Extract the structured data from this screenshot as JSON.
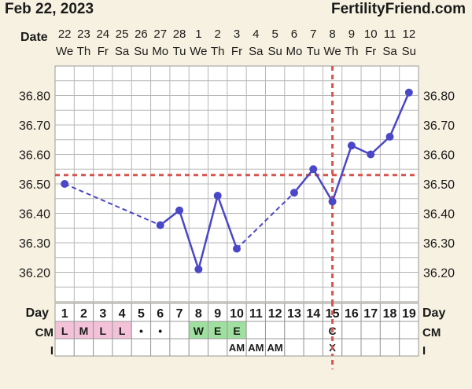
{
  "header": {
    "date_text": "Feb 22, 2023",
    "brand": "FertilityFriend.com"
  },
  "labels": {
    "date_row": "Date",
    "day_row": "Day",
    "cm_row": "CM",
    "i_row": "I"
  },
  "colors": {
    "background": "#f6f1e0",
    "plot_background": "#ffffff",
    "grid": "#b7b7b7",
    "line": "#4a47c8",
    "reference_line": "#d9534f",
    "cm_low_fill": "#f3c1d8",
    "cm_egg_white_fill": "#9fe0a0"
  },
  "chart_data": {
    "type": "line",
    "x": [
      1,
      2,
      3,
      4,
      5,
      6,
      7,
      8,
      9,
      10,
      11,
      12,
      13,
      14,
      15,
      16,
      17,
      18,
      19
    ],
    "dates": [
      "22",
      "23",
      "24",
      "25",
      "26",
      "27",
      "28",
      "1",
      "2",
      "3",
      "4",
      "5",
      "6",
      "7",
      "8",
      "9",
      "10",
      "11",
      "12"
    ],
    "weekdays": [
      "We",
      "Th",
      "Fr",
      "Sa",
      "Su",
      "Mo",
      "Tu",
      "We",
      "Th",
      "Fr",
      "Sa",
      "Su",
      "Mo",
      "Tu",
      "We",
      "Th",
      "Fr",
      "Sa",
      "Su"
    ],
    "series": [
      {
        "values": [
          36.5,
          null,
          null,
          null,
          null,
          36.36,
          36.41,
          36.21,
          36.46,
          36.28,
          null,
          null,
          36.47,
          36.55,
          36.44,
          36.63,
          36.6,
          36.66,
          36.81
        ]
      }
    ],
    "ylim": [
      36.1,
      36.9
    ],
    "y_ticks": [
      "36.20",
      "36.30",
      "36.40",
      "36.50",
      "36.60",
      "36.70",
      "36.80"
    ],
    "coverline": 36.53,
    "ovulation_day": 15,
    "gaps_dashed": true,
    "grid": true,
    "cm": [
      "L",
      "M",
      "L",
      "L",
      "•",
      "•",
      "",
      "W",
      "E",
      "E",
      "",
      "",
      "",
      "",
      "C",
      "",
      "",
      "",
      ""
    ],
    "cm_highlight": [
      "low",
      "low",
      "low",
      "low",
      "",
      "",
      "",
      "egg-white",
      "egg-white",
      "egg-white",
      "",
      "",
      "",
      "",
      "",
      "",
      "",
      "",
      ""
    ],
    "intercourse": [
      "",
      "",
      "",
      "",
      "",
      "",
      "",
      "",
      "",
      "AM",
      "AM",
      "AM",
      "",
      "",
      "X",
      "",
      "",
      "",
      ""
    ]
  }
}
